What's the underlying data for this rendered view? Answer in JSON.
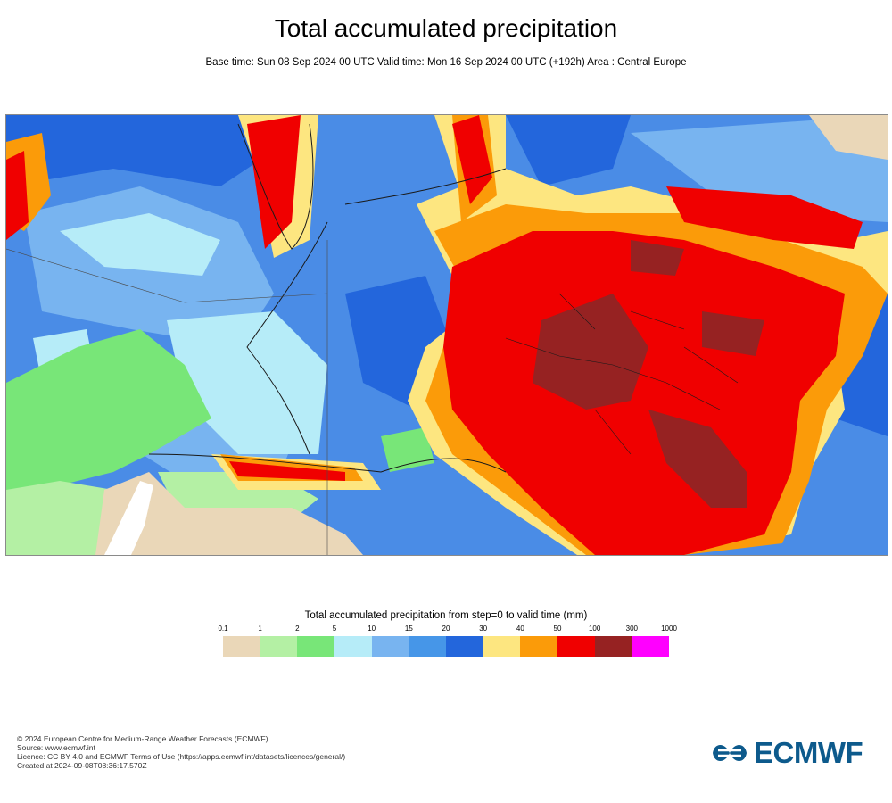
{
  "title": "Total accumulated precipitation",
  "subtitle": "Base time: Sun 08 Sep 2024 00 UTC Valid time: Mon 16 Sep 2024 00 UTC (+192h) Area : Central Europe",
  "legend": {
    "title": "Total accumulated precipitation from step=0 to valid time (mm)",
    "ticks": [
      "0.1",
      "1",
      "2",
      "5",
      "10",
      "15",
      "20",
      "30",
      "40",
      "50",
      "100",
      "300",
      "1000"
    ],
    "colors": [
      "#ead7b8",
      "#b4f0a4",
      "#78e678",
      "#b6ecf8",
      "#78b4f0",
      "#4696e8",
      "#2366dc",
      "#fde680",
      "#fb9b09",
      "#f00000",
      "#962222",
      "#ff00ff"
    ]
  },
  "footer": {
    "copyright": "© 2024 European Centre for Medium-Range Weather Forecasts (ECMWF)",
    "source": "Source: www.ecmwf.int",
    "licence": "Licence: CC BY 4.0 and ECMWF Terms of Use (https://apps.ecmwf.int/datasets/licences/general/)",
    "created": "Created at 2024-09-08T08:36:17.570Z"
  },
  "logo": {
    "text": "ECMWF",
    "color": "#0d5a8c"
  }
}
